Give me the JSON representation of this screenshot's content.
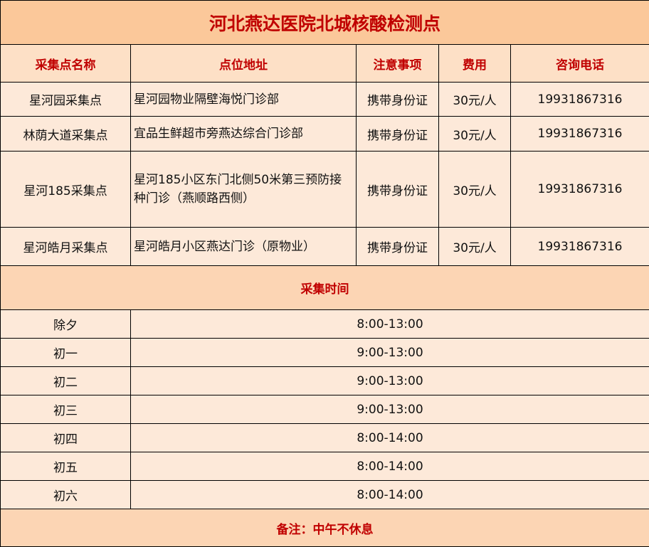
{
  "title": "河北燕达医院北城核酸检测点",
  "headers": [
    "采集点名称",
    "点位地址",
    "注意事项",
    "费用",
    "咨询电话"
  ],
  "sites": [
    {
      "name": "星河园采集点",
      "address": "星河园物业隔壁海悦门诊部",
      "note": "携带身份证",
      "fee": "30元/人",
      "phone": "19931867316"
    },
    {
      "name": "林荫大道采集点",
      "address": "宜品生鲜超市旁燕达综合门诊部",
      "note": "携带身份证",
      "fee": "30元/人",
      "phone": "19931867316"
    },
    {
      "name": "星河185采集点",
      "address": "星河185小区东门北侧50米第三预防接种门诊（燕顺路西侧）",
      "note": "携带身份证",
      "fee": "30元/人",
      "phone": "19931867316"
    },
    {
      "name": "星河皓月采集点",
      "address": "星河皓月小区燕达门诊（原物业）",
      "note": "携带身份证",
      "fee": "30元/人",
      "phone": "19931867316"
    }
  ],
  "schedule_title": "采集时间",
  "schedule": [
    {
      "day": "除夕",
      "hours": "8:00-13:00"
    },
    {
      "day": "初一",
      "hours": "9:00-13:00"
    },
    {
      "day": "初二",
      "hours": "9:00-13:00"
    },
    {
      "day": "初三",
      "hours": "9:00-13:00"
    },
    {
      "day": "初四",
      "hours": "8:00-14:00"
    },
    {
      "day": "初五",
      "hours": "8:00-14:00"
    },
    {
      "day": "初六",
      "hours": "8:00-14:00"
    }
  ],
  "footer": "备注：中午不休息",
  "colors": {
    "accent_text": "#C00000",
    "title_bg": "#FBC89A",
    "row_bg": "#FDE9D9"
  }
}
